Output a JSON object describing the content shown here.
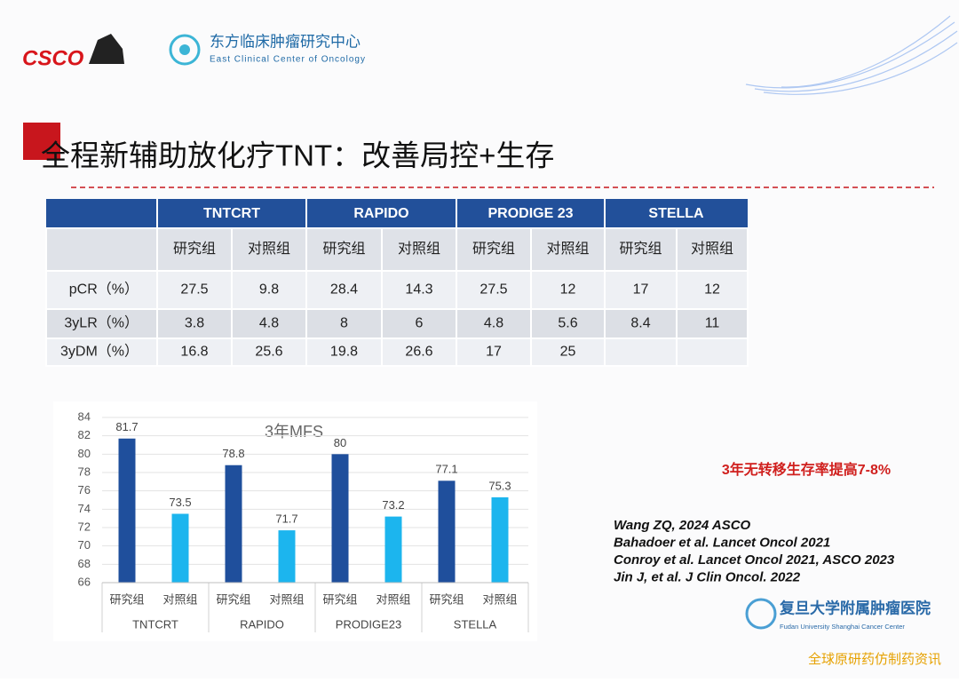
{
  "header": {
    "logo": "CSCO",
    "org_cn": "东方临床肿瘤研究中心",
    "org_en": "East Clinical Center of Oncology"
  },
  "title": "全程新辅助放化疗TNT：改善局控+生存",
  "table": {
    "groups": [
      "TNTCRT",
      "RAPIDO",
      "PRODIGE 23",
      "STELLA"
    ],
    "subheaders": [
      "研究组",
      "对照组",
      "研究组",
      "对照组",
      "研究组",
      "对照组",
      "研究组",
      "对照组"
    ],
    "rows": [
      [
        "pCR（%）",
        "27.5",
        "9.8",
        "28.4",
        "14.3",
        "27.5",
        "12",
        "17",
        "12"
      ],
      [
        "3yLR（%）",
        "3.8",
        "4.8",
        "8",
        "6",
        "4.8",
        "5.6",
        "8.4",
        "11"
      ],
      [
        "3yDM（%）",
        "16.8",
        "25.6",
        "19.8",
        "26.6",
        "17",
        "25"
      ]
    ]
  },
  "chart_data": {
    "type": "bar",
    "title": "3年MFS",
    "categories": [
      "TNTCRT",
      "RAPIDO",
      "PRODIGE23",
      "STELLA"
    ],
    "series": [
      {
        "name": "研究组",
        "color": "#1f4f9c",
        "values": [
          81.7,
          78.8,
          80,
          77.1
        ]
      },
      {
        "name": "对照组",
        "color": "#1cb5ee",
        "values": [
          73.5,
          71.7,
          73.2,
          75.3
        ]
      }
    ],
    "ylim": [
      66,
      84
    ],
    "yticks": [
      66,
      68,
      70,
      72,
      74,
      76,
      78,
      80,
      82,
      84
    ],
    "grid": true
  },
  "note": "3年无转移生存率提高7-8%",
  "references": [
    "Wang ZQ, 2024 ASCO",
    "Bahadoer et al. Lancet Oncol 2021",
    "Conroy et al. Lancet Oncol 2021, ASCO 2023",
    "Jin J, et al. J Clin Oncol. 2022"
  ],
  "footer": {
    "org_cn": "复旦大学附属肿瘤医院",
    "org_en": "Fudan University Shanghai Cancer Center",
    "watermark": "全球原研药仿制药资讯"
  }
}
